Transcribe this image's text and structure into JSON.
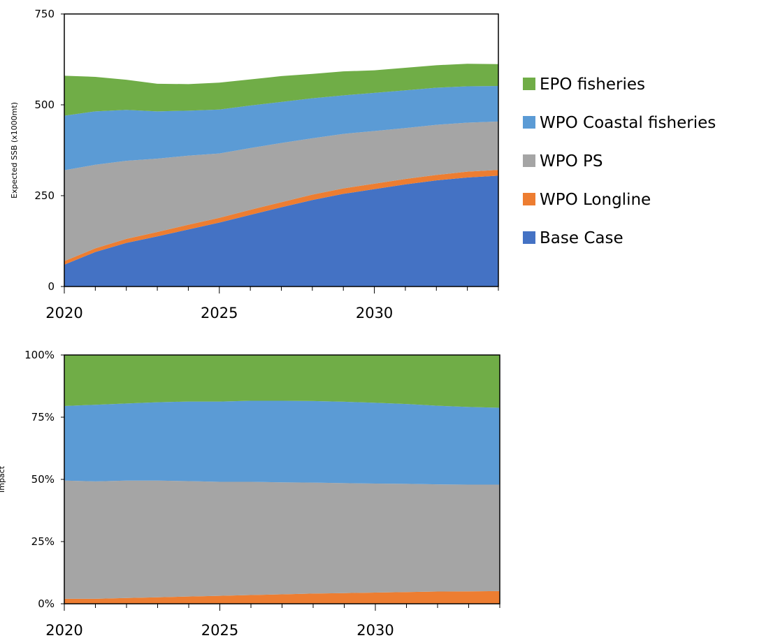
{
  "colors": {
    "base_case": "#4472C4",
    "wpo_longline": "#ED7D31",
    "wpo_ps": "#A5A5A5",
    "wpo_coastal": "#5B9BD5",
    "epo": "#70AD47"
  },
  "legend": [
    {
      "label": "EPO fisheries",
      "key": "epo"
    },
    {
      "label": "WPO Coastal fisheries",
      "key": "wpo_coastal"
    },
    {
      "label": "WPO PS",
      "key": "wpo_ps"
    },
    {
      "label": "WPO Longline",
      "key": "wpo_longline"
    },
    {
      "label": "Base Case",
      "key": "base_case"
    }
  ],
  "chart_data": [
    {
      "type": "area",
      "stacked": true,
      "ylabel": "Expected SSB (x1000mt)",
      "xlabel": "",
      "xlim": [
        2020,
        2034
      ],
      "ylim": [
        0,
        750
      ],
      "yticks": [
        0,
        250,
        500,
        750
      ],
      "yticks_labels": [
        "0",
        "250",
        "500",
        "750"
      ],
      "xticks_labels": [
        "2020",
        "2025",
        "2030"
      ],
      "xticks": [
        2020,
        2025,
        2030
      ],
      "x": [
        2020,
        2021,
        2022,
        2023,
        2024,
        2025,
        2026,
        2027,
        2028,
        2029,
        2030,
        2031,
        2032,
        2033,
        2034
      ],
      "series": [
        {
          "name": "Base Case",
          "key": "base_case",
          "values": [
            60,
            95,
            120,
            138,
            157,
            176,
            197,
            218,
            238,
            255,
            268,
            281,
            292,
            300,
            305
          ]
        },
        {
          "name": "WPO Longline",
          "key": "wpo_longline",
          "values": [
            10,
            10,
            11,
            12,
            13,
            13,
            14,
            14,
            15,
            15,
            15,
            15,
            15,
            16,
            16
          ]
        },
        {
          "name": "WPO PS",
          "key": "wpo_ps",
          "values": [
            250,
            230,
            215,
            202,
            190,
            177,
            170,
            163,
            155,
            150,
            145,
            140,
            138,
            135,
            133
          ]
        },
        {
          "name": "WPO Coastal fisheries",
          "key": "wpo_coastal",
          "values": [
            150,
            147,
            140,
            130,
            124,
            121,
            117,
            113,
            110,
            106,
            105,
            104,
            102,
            100,
            98
          ]
        },
        {
          "name": "EPO fisheries",
          "key": "epo",
          "values": [
            110,
            95,
            83,
            76,
            73,
            74,
            72,
            71,
            67,
            66,
            62,
            62,
            62,
            62,
            60
          ]
        }
      ]
    },
    {
      "type": "area",
      "stacked": true,
      "ylabel": "Impact",
      "xlabel": "",
      "xlim": [
        2020,
        2034
      ],
      "ylim": [
        0,
        100
      ],
      "yticks": [
        0,
        25,
        50,
        75,
        100
      ],
      "yticks_labels": [
        "0%",
        "25%",
        "50%",
        "75%",
        "100%"
      ],
      "xticks_labels": [
        "2020",
        "2025",
        "2030"
      ],
      "xticks": [
        2020,
        2025,
        2030
      ],
      "x": [
        2020,
        2021,
        2022,
        2023,
        2024,
        2025,
        2026,
        2027,
        2028,
        2029,
        2030,
        2031,
        2032,
        2033,
        2034
      ],
      "series": [
        {
          "name": "WPO Longline",
          "key": "wpo_longline",
          "values": [
            2,
            2,
            2.3,
            2.6,
            2.9,
            3.2,
            3.5,
            3.8,
            4.1,
            4.3,
            4.5,
            4.7,
            4.9,
            5.0,
            5.1
          ]
        },
        {
          "name": "WPO PS",
          "key": "wpo_ps",
          "values": [
            47.5,
            47.2,
            47.2,
            46.9,
            46.4,
            45.8,
            45.5,
            45.0,
            44.6,
            44.2,
            43.8,
            43.5,
            43.1,
            42.9,
            42.8
          ]
        },
        {
          "name": "WPO Coastal fisheries",
          "key": "wpo_coastal",
          "values": [
            30,
            30.8,
            31.0,
            31.5,
            32.0,
            32.3,
            32.6,
            32.8,
            32.8,
            32.7,
            32.5,
            32.1,
            31.6,
            31.2,
            30.9
          ]
        },
        {
          "name": "EPO fisheries",
          "key": "epo",
          "values": [
            20.5,
            20.0,
            19.5,
            19.0,
            18.7,
            18.7,
            18.4,
            18.4,
            18.5,
            18.8,
            19.2,
            19.7,
            20.4,
            20.9,
            21.2
          ]
        }
      ]
    }
  ]
}
